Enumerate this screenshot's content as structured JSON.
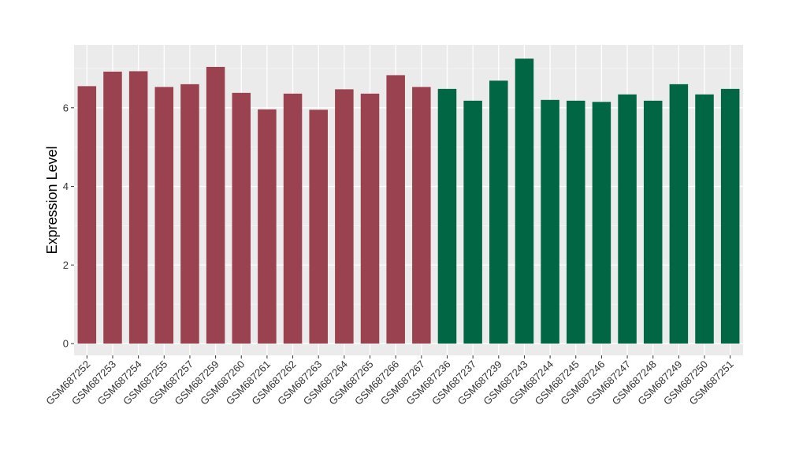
{
  "chart_data": {
    "type": "bar",
    "title": "",
    "xlabel": "",
    "ylabel": "Expression Level",
    "ylim": [
      -0.3,
      7.6
    ],
    "yticks": [
      0,
      2,
      4,
      6
    ],
    "grid": true,
    "background": "#EBEBEB",
    "categories": [
      "GSM687252",
      "GSM687253",
      "GSM687254",
      "GSM687255",
      "GSM687257",
      "GSM687259",
      "GSM687260",
      "GSM687261",
      "GSM687262",
      "GSM687263",
      "GSM687264",
      "GSM687265",
      "GSM687266",
      "GSM687267",
      "GSM687236",
      "GSM687237",
      "GSM687239",
      "GSM687243",
      "GSM687244",
      "GSM687245",
      "GSM687246",
      "GSM687247",
      "GSM687248",
      "GSM687249",
      "GSM687250",
      "GSM687251"
    ],
    "values": [
      6.55,
      6.92,
      6.93,
      6.53,
      6.6,
      7.04,
      6.38,
      5.96,
      6.36,
      5.95,
      6.47,
      6.36,
      6.83,
      6.53,
      6.48,
      6.18,
      6.69,
      7.25,
      6.2,
      6.18,
      6.15,
      6.34,
      6.18,
      6.6,
      6.34,
      6.48
    ],
    "groups": [
      0,
      0,
      0,
      0,
      0,
      0,
      0,
      0,
      0,
      0,
      0,
      0,
      0,
      0,
      1,
      1,
      1,
      1,
      1,
      1,
      1,
      1,
      1,
      1,
      1,
      1
    ],
    "colors": [
      "#9B4250",
      "#006644"
    ]
  }
}
